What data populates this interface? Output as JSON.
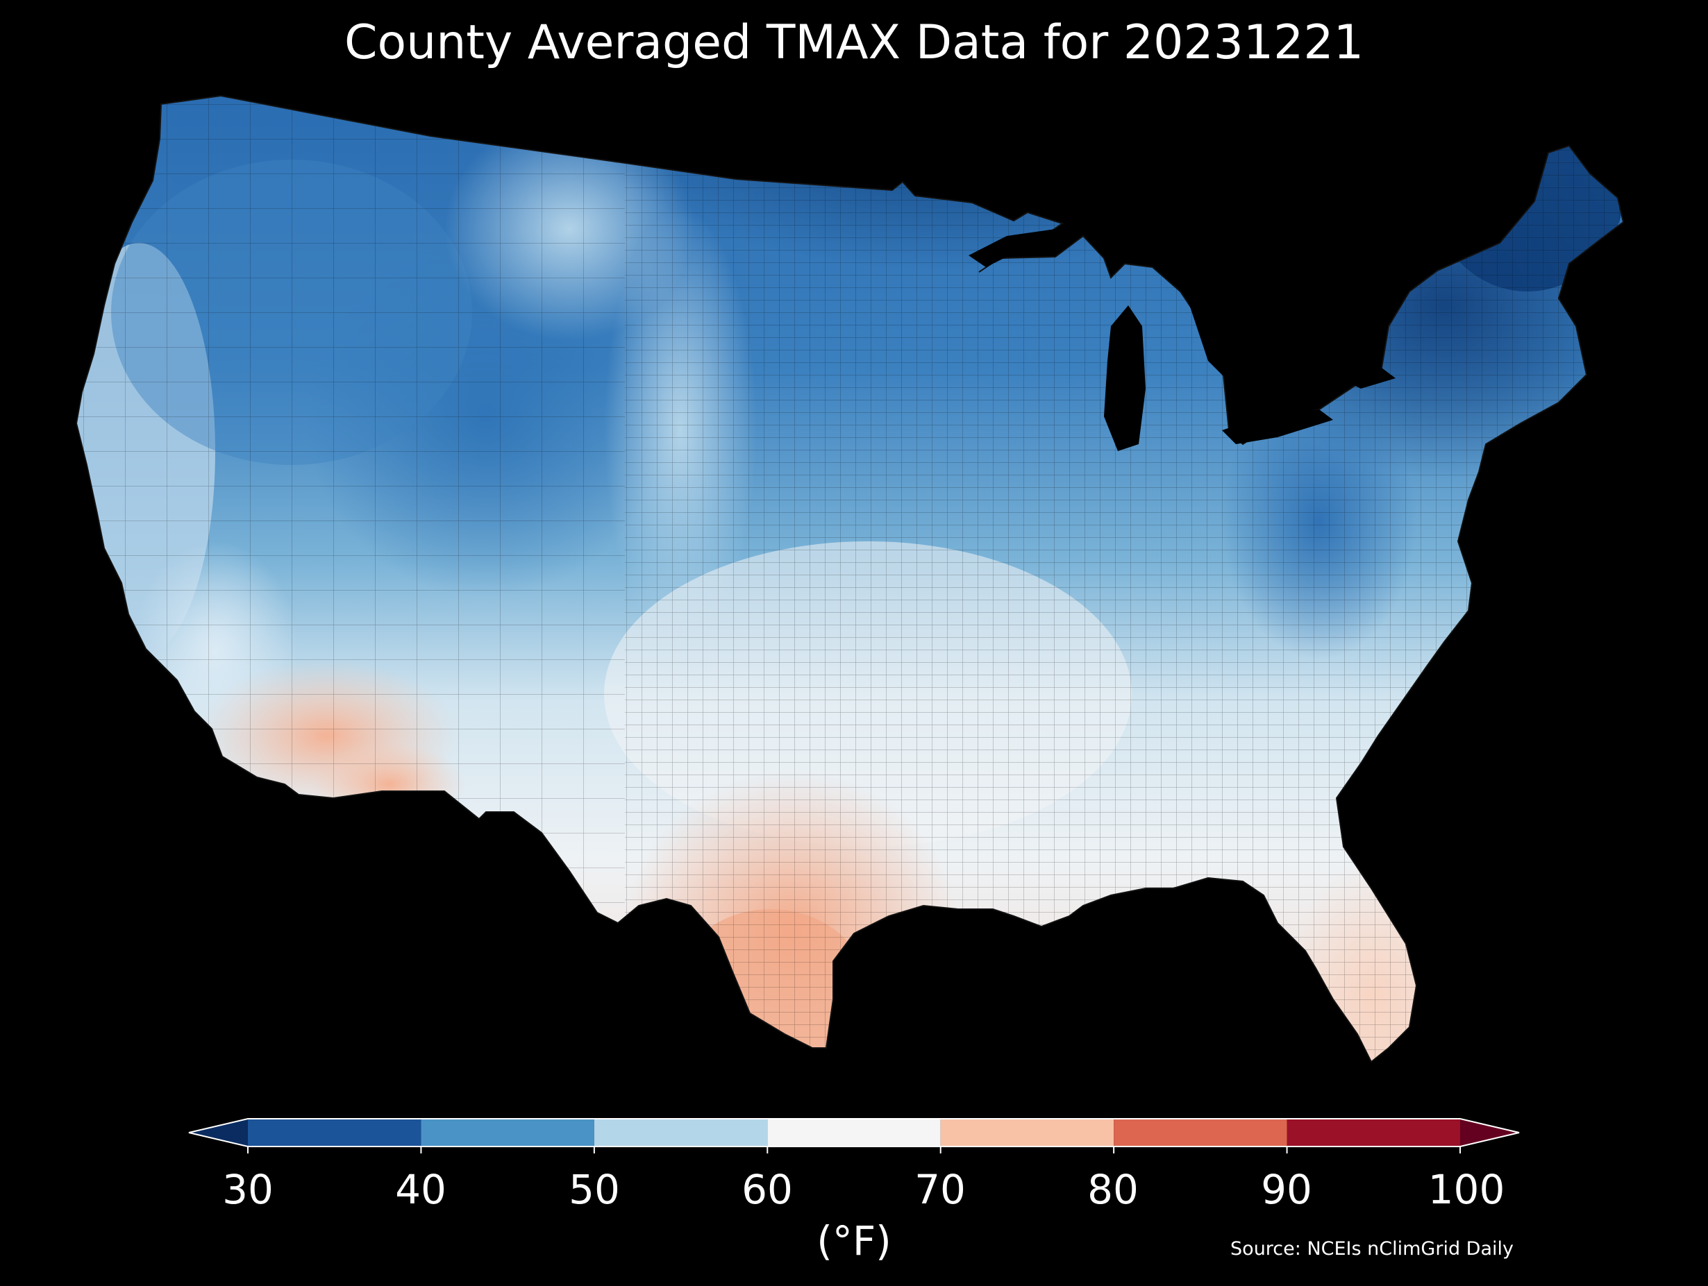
{
  "title": "County Averaged TMAX Data for 20231221",
  "colorbar": {
    "unit": "(°F)",
    "ticks": [
      "30",
      "40",
      "50",
      "60",
      "70",
      "80",
      "90",
      "100"
    ],
    "bins": [
      {
        "from": 30,
        "to": 40,
        "color": "#1c5499"
      },
      {
        "from": 40,
        "to": 50,
        "color": "#4a93c6"
      },
      {
        "from": 50,
        "to": 60,
        "color": "#b4d6e9"
      },
      {
        "from": 60,
        "to": 70,
        "color": "#f5f5f5"
      },
      {
        "from": 70,
        "to": 80,
        "color": "#f8c2a6"
      },
      {
        "from": 80,
        "to": 90,
        "color": "#dd6651"
      },
      {
        "from": 90,
        "to": 100,
        "color": "#9b1128"
      }
    ],
    "under_color": "#0a2c60",
    "over_color": "#640020",
    "extend": "both"
  },
  "source": "Source: NCEIs nClimGrid Daily",
  "map": {
    "region": "Contiguous United States counties",
    "variable": "TMAX",
    "regional_values_F": {
      "pacific_northwest": 42,
      "northern_rockies": 42,
      "northern_plains": 38,
      "upper_midwest": 35,
      "great_lakes": 37,
      "northeast": 38,
      "maine": 33,
      "california_coast": 56,
      "southern_california": 65,
      "southwest_arizona": 72,
      "great_basin": 48,
      "colorado": 42,
      "southern_plains": 60,
      "south_texas": 74,
      "southeast": 55,
      "florida": 68,
      "mid_atlantic": 46
    }
  }
}
